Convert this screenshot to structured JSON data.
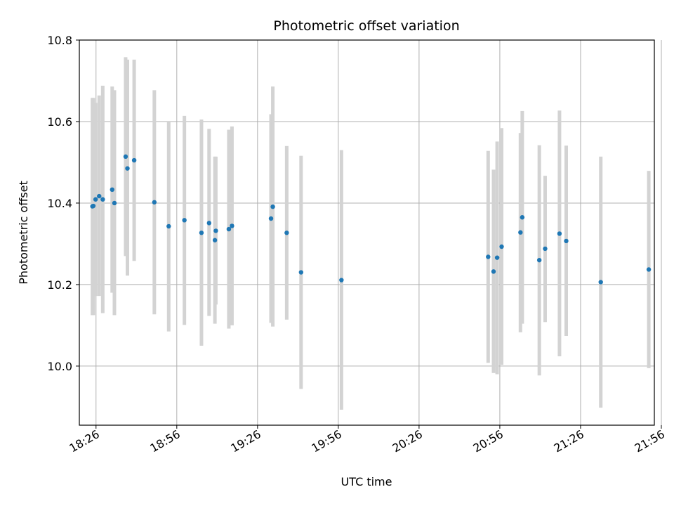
{
  "chart_data": {
    "type": "scatter",
    "title": "Photometric offset variation",
    "xlabel": "UTC time",
    "ylabel": "Photometric offset",
    "x_ticks": [
      "18:26",
      "18:56",
      "19:26",
      "19:56",
      "20:26",
      "20:56",
      "21:26",
      "21:56"
    ],
    "x_tick_minutes": [
      1106,
      1136,
      1166,
      1196,
      1226,
      1256,
      1286,
      1316
    ],
    "xlim_minutes": [
      1099.8,
      1313.4
    ],
    "y_ticks": [
      "10.0",
      "10.2",
      "10.4",
      "10.6",
      "10.8"
    ],
    "ylim": [
      9.855,
      10.8
    ],
    "grid": true,
    "colors": {
      "point": "#1f77b4",
      "errorbar": "#d3d3d3",
      "grid": "#b0b0b0"
    },
    "points": [
      {
        "x": "18:24:40",
        "y": 10.392,
        "ylow": 10.125,
        "yhigh": 10.658
      },
      {
        "x": "18:25:00",
        "y": 10.393,
        "ylow": 10.125,
        "yhigh": 10.658
      },
      {
        "x": "18:25:50",
        "y": 10.409,
        "ylow": 10.172,
        "yhigh": 10.646
      },
      {
        "x": "18:27:10",
        "y": 10.417,
        "ylow": 10.172,
        "yhigh": 10.664
      },
      {
        "x": "18:28:30",
        "y": 10.409,
        "ylow": 10.13,
        "yhigh": 10.688
      },
      {
        "x": "18:32:00",
        "y": 10.433,
        "ylow": 10.18,
        "yhigh": 10.686
      },
      {
        "x": "18:32:50",
        "y": 10.4,
        "ylow": 10.125,
        "yhigh": 10.677
      },
      {
        "x": "18:37:00",
        "y": 10.514,
        "ylow": 10.27,
        "yhigh": 10.758
      },
      {
        "x": "18:37:40",
        "y": 10.485,
        "ylow": 10.222,
        "yhigh": 10.752
      },
      {
        "x": "18:40:10",
        "y": 10.505,
        "ylow": 10.258,
        "yhigh": 10.752
      },
      {
        "x": "18:47:40",
        "y": 10.402,
        "ylow": 10.127,
        "yhigh": 10.677
      },
      {
        "x": "18:53:00",
        "y": 10.343,
        "ylow": 10.085,
        "yhigh": 10.6
      },
      {
        "x": "18:58:50",
        "y": 10.358,
        "ylow": 10.101,
        "yhigh": 10.614
      },
      {
        "x": "19:05:10",
        "y": 10.327,
        "ylow": 10.05,
        "yhigh": 10.605
      },
      {
        "x": "19:08:00",
        "y": 10.351,
        "ylow": 10.123,
        "yhigh": 10.582
      },
      {
        "x": "19:10:10",
        "y": 10.309,
        "ylow": 10.104,
        "yhigh": 10.514
      },
      {
        "x": "19:10:30",
        "y": 10.332,
        "ylow": 10.151,
        "yhigh": 10.514
      },
      {
        "x": "19:15:20",
        "y": 10.336,
        "ylow": 10.092,
        "yhigh": 10.58
      },
      {
        "x": "19:16:30",
        "y": 10.344,
        "ylow": 10.1,
        "yhigh": 10.588
      },
      {
        "x": "19:31:00",
        "y": 10.362,
        "ylow": 10.106,
        "yhigh": 10.618
      },
      {
        "x": "19:31:40",
        "y": 10.391,
        "ylow": 10.097,
        "yhigh": 10.686
      },
      {
        "x": "19:36:50",
        "y": 10.327,
        "ylow": 10.114,
        "yhigh": 10.54
      },
      {
        "x": "19:42:10",
        "y": 10.23,
        "ylow": 9.944,
        "yhigh": 10.516
      },
      {
        "x": "19:57:10",
        "y": 10.211,
        "ylow": 9.893,
        "yhigh": 10.53
      },
      {
        "x": "20:51:40",
        "y": 10.268,
        "ylow": 10.008,
        "yhigh": 10.528
      },
      {
        "x": "20:53:40",
        "y": 10.232,
        "ylow": 9.983,
        "yhigh": 10.482
      },
      {
        "x": "20:55:00",
        "y": 10.266,
        "ylow": 9.98,
        "yhigh": 10.551
      },
      {
        "x": "20:56:40",
        "y": 10.293,
        "ylow": 10.003,
        "yhigh": 10.584
      },
      {
        "x": "21:03:40",
        "y": 10.328,
        "ylow": 10.083,
        "yhigh": 10.572
      },
      {
        "x": "21:04:20",
        "y": 10.365,
        "ylow": 10.104,
        "yhigh": 10.626
      },
      {
        "x": "21:10:40",
        "y": 10.26,
        "ylow": 9.977,
        "yhigh": 10.542
      },
      {
        "x": "21:12:50",
        "y": 10.288,
        "ylow": 10.108,
        "yhigh": 10.467
      },
      {
        "x": "21:18:10",
        "y": 10.325,
        "ylow": 10.024,
        "yhigh": 10.627
      },
      {
        "x": "21:20:40",
        "y": 10.307,
        "ylow": 10.074,
        "yhigh": 10.541
      },
      {
        "x": "21:33:30",
        "y": 10.206,
        "ylow": 9.898,
        "yhigh": 10.514
      },
      {
        "x": "21:51:20",
        "y": 10.237,
        "ylow": 9.995,
        "yhigh": 10.479
      }
    ]
  }
}
